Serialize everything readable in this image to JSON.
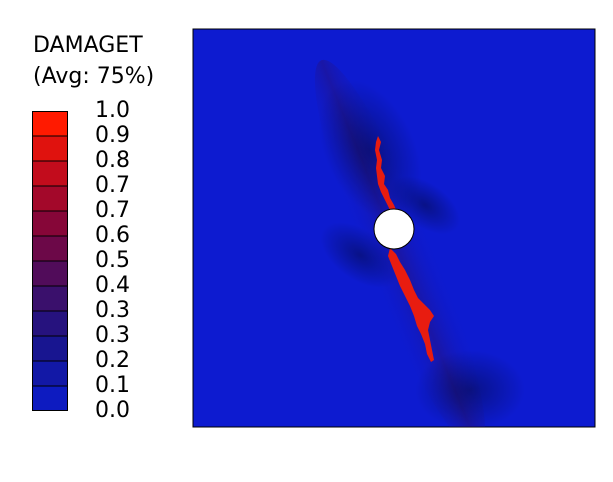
{
  "legend": {
    "title": "DAMAGET",
    "subtitle": "(Avg: 75%)",
    "tick_labels": [
      "1.0",
      "0.9",
      "0.8",
      "0.7",
      "0.7",
      "0.6",
      "0.5",
      "0.4",
      "0.3",
      "0.3",
      "0.2",
      "0.1",
      "0.0"
    ],
    "band_colors": [
      "#ff1a00",
      "#e0120e",
      "#c20c1c",
      "#a3082a",
      "#860638",
      "#6c0848",
      "#510c5a",
      "#3a106c",
      "#26127e",
      "#181590",
      "#1218a6",
      "#0d1bc0",
      "#0a1ee8"
    ]
  },
  "contour": {
    "background_color": "#0d1bd0",
    "crack_color": "#e81c10",
    "hole_color": "#ffffff"
  }
}
